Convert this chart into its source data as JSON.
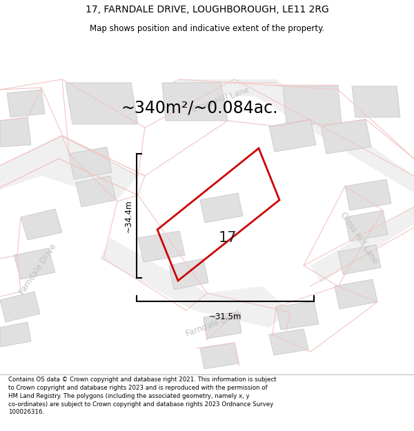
{
  "title_line1": "17, FARNDALE DRIVE, LOUGHBOROUGH, LE11 2RG",
  "title_line2": "Map shows position and indicative extent of the property.",
  "area_text": "~340m²/~0.084ac.",
  "dim_height": "~34.4m",
  "dim_width": "~31.5m",
  "property_number": "17",
  "footer_text": "Contains OS data © Crown copyright and database right 2021. This information is subject to Crown copyright and database rights 2023 and is reproduced with the permission of HM Land Registry. The polygons (including the associated geometry, namely x, y co-ordinates) are subject to Crown copyright and database rights 2023 Ordnance Survey 100026316.",
  "bg_color": "#ffffff",
  "map_bg": "#ffffff",
  "road_color_pink": "#f2c4c4",
  "building_fill": "#e0e0e0",
  "building_edge": "#c8c8c8",
  "property_color": "#cc0000",
  "dim_color": "#000000",
  "street_color": "#c0c0c0",
  "title_color": "#000000",
  "footer_color": "#000000",
  "area_color": "#000000"
}
